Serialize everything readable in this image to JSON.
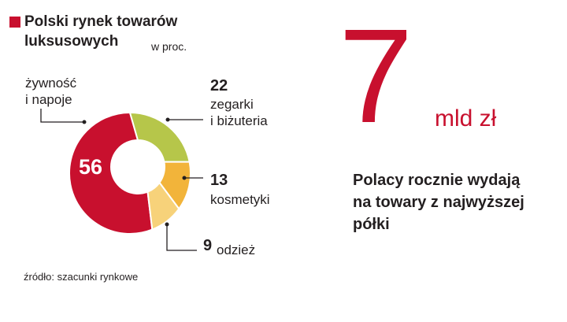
{
  "title_lines": [
    "Polski rynek towarów",
    "luksusowych"
  ],
  "unit": "w proc.",
  "chart_data": {
    "type": "pie",
    "title": "Polski rynek towarów luksusowych",
    "unit": "w proc.",
    "slices": [
      {
        "label_lines": [
          "żywność",
          "i napoje"
        ],
        "value": 56,
        "color": "#c8102e"
      },
      {
        "label_lines": [
          "zegarki",
          "i biżuteria"
        ],
        "value": 22,
        "color": "#b6c64a"
      },
      {
        "label_lines": [
          "kosmetyki"
        ],
        "value": 13,
        "color": "#f2b43a"
      },
      {
        "label_lines": [
          "odzież"
        ],
        "value": 9,
        "color": "#f7d27a"
      }
    ]
  },
  "big_number": "7",
  "big_unit": "mld zł",
  "headline_lines": [
    "Polacy rocznie wydają",
    "na towary z najwyższej",
    "półki"
  ],
  "source": "źródło: szacunki rynkowe"
}
